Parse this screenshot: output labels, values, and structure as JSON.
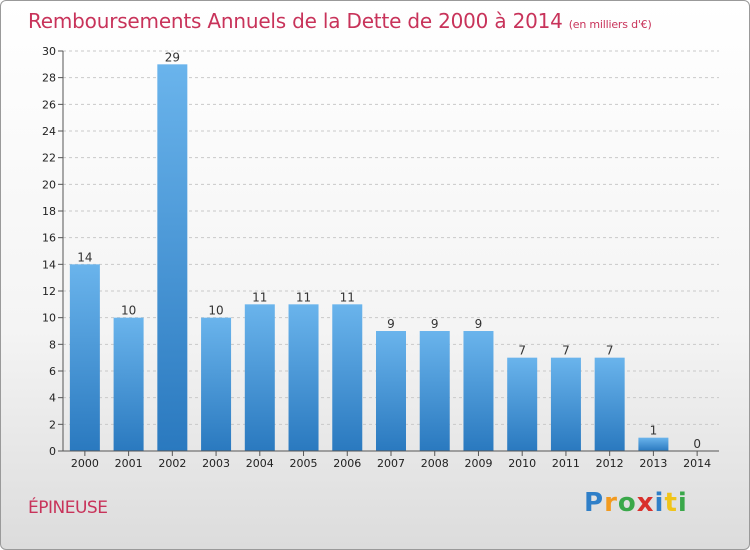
{
  "title": "Remboursements Annuels de la Dette de 2000 à 2014",
  "subtitle": "(en milliers d'€)",
  "commune": "ÉPINEUSE",
  "brand": "Proxiti",
  "colors": {
    "bar_light": "#6ab4ec",
    "bar_dark": "#2a79bf",
    "title": "#c8335a"
  },
  "chart_data": {
    "type": "bar",
    "categories": [
      "2000",
      "2001",
      "2002",
      "2003",
      "2004",
      "2005",
      "2006",
      "2007",
      "2008",
      "2009",
      "2010",
      "2011",
      "2012",
      "2013",
      "2014"
    ],
    "values": [
      14,
      10,
      29,
      10,
      11,
      11,
      11,
      9,
      9,
      9,
      7,
      7,
      7,
      1,
      0
    ],
    "ylim": [
      0,
      30
    ],
    "yticks": [
      0,
      2,
      4,
      6,
      8,
      10,
      12,
      14,
      16,
      18,
      20,
      22,
      24,
      26,
      28,
      30
    ],
    "grid": true
  }
}
